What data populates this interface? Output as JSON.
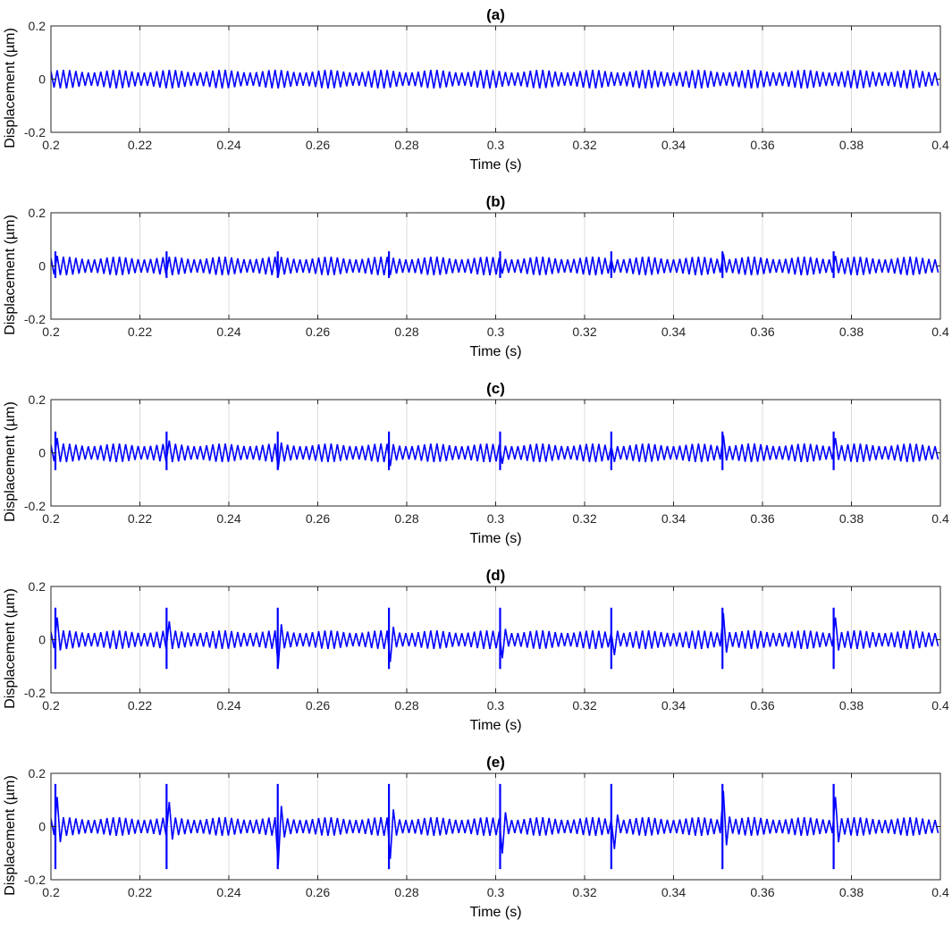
{
  "figure": {
    "line_color": "#0000ff",
    "grid": true
  },
  "chart_data": [
    {
      "type": "line",
      "title": "(a)",
      "xlabel": "Time (s)",
      "ylabel": "Displacement (µm)",
      "xlim": [
        0.2,
        0.4
      ],
      "ylim": [
        -0.2,
        0.2
      ],
      "xticks": [
        0.2,
        0.22,
        0.24,
        0.26,
        0.28,
        0.3,
        0.32,
        0.34,
        0.36,
        0.38,
        0.4
      ],
      "xtick_labels": [
        "0.2",
        "0.22",
        "0.24",
        "0.26",
        "0.28",
        "0.3",
        "0.32",
        "0.34",
        "0.36",
        "0.38",
        "0.4"
      ],
      "yticks": [
        -0.2,
        0,
        0.2
      ],
      "ytick_labels": [
        "-0.2",
        "0",
        "0.2"
      ],
      "series": [
        {
          "color": "#0000ff",
          "base_amplitude": 0.035,
          "oscillation_period_s": 0.0014,
          "spike_times_s": [],
          "spike_peak_up": 0,
          "spike_peak_down": 0
        }
      ]
    },
    {
      "type": "line",
      "title": "(b)",
      "xlabel": "Time (s)",
      "ylabel": "Displacement (µm)",
      "xlim": [
        0.2,
        0.4
      ],
      "ylim": [
        -0.2,
        0.2
      ],
      "xticks": [
        0.2,
        0.22,
        0.24,
        0.26,
        0.28,
        0.3,
        0.32,
        0.34,
        0.36,
        0.38,
        0.4
      ],
      "xtick_labels": [
        "0.2",
        "0.22",
        "0.24",
        "0.26",
        "0.28",
        "0.3",
        "0.32",
        "0.34",
        "0.36",
        "0.38",
        "0.4"
      ],
      "yticks": [
        -0.2,
        0,
        0.2
      ],
      "ytick_labels": [
        "-0.2",
        "0",
        "0.2"
      ],
      "series": [
        {
          "color": "#0000ff",
          "base_amplitude": 0.035,
          "oscillation_period_s": 0.0014,
          "spike_times_s": [
            0.201,
            0.226,
            0.251,
            0.276,
            0.301,
            0.326,
            0.351,
            0.376
          ],
          "spike_peak_up": 0.055,
          "spike_peak_down": -0.045
        }
      ]
    },
    {
      "type": "line",
      "title": "(c)",
      "xlabel": "Time (s)",
      "ylabel": "Displacement (µm)",
      "xlim": [
        0.2,
        0.4
      ],
      "ylim": [
        -0.2,
        0.2
      ],
      "xticks": [
        0.2,
        0.22,
        0.24,
        0.26,
        0.28,
        0.3,
        0.32,
        0.34,
        0.36,
        0.38,
        0.4
      ],
      "xtick_labels": [
        "0.2",
        "0.22",
        "0.24",
        "0.26",
        "0.28",
        "0.3",
        "0.32",
        "0.34",
        "0.36",
        "0.38",
        "0.4"
      ],
      "yticks": [
        -0.2,
        0,
        0.2
      ],
      "ytick_labels": [
        "-0.2",
        "0",
        "0.2"
      ],
      "series": [
        {
          "color": "#0000ff",
          "base_amplitude": 0.035,
          "oscillation_period_s": 0.0014,
          "spike_times_s": [
            0.201,
            0.226,
            0.251,
            0.276,
            0.301,
            0.326,
            0.351,
            0.376
          ],
          "spike_peak_up": 0.08,
          "spike_peak_down": -0.065
        }
      ]
    },
    {
      "type": "line",
      "title": "(d)",
      "xlabel": "Time (s)",
      "ylabel": "Displacement (µm)",
      "xlim": [
        0.2,
        0.4
      ],
      "ylim": [
        -0.2,
        0.2
      ],
      "xticks": [
        0.2,
        0.22,
        0.24,
        0.26,
        0.28,
        0.3,
        0.32,
        0.34,
        0.36,
        0.38,
        0.4
      ],
      "xtick_labels": [
        "0.2",
        "0.22",
        "0.24",
        "0.26",
        "0.28",
        "0.3",
        "0.32",
        "0.34",
        "0.36",
        "0.38",
        "0.4"
      ],
      "yticks": [
        -0.2,
        0,
        0.2
      ],
      "ytick_labels": [
        "-0.2",
        "0",
        "0.2"
      ],
      "series": [
        {
          "color": "#0000ff",
          "base_amplitude": 0.035,
          "oscillation_period_s": 0.0014,
          "spike_times_s": [
            0.201,
            0.226,
            0.251,
            0.276,
            0.301,
            0.326,
            0.351,
            0.376
          ],
          "spike_peak_up": 0.12,
          "spike_peak_down": -0.11
        }
      ]
    },
    {
      "type": "line",
      "title": "(e)",
      "xlabel": "Time (s)",
      "ylabel": "Displacement (µm)",
      "xlim": [
        0.2,
        0.4
      ],
      "ylim": [
        -0.2,
        0.2
      ],
      "xticks": [
        0.2,
        0.22,
        0.24,
        0.26,
        0.28,
        0.3,
        0.32,
        0.34,
        0.36,
        0.38,
        0.4
      ],
      "xtick_labels": [
        "0.2",
        "0.22",
        "0.24",
        "0.26",
        "0.28",
        "0.3",
        "0.32",
        "0.34",
        "0.36",
        "0.38",
        "0.4"
      ],
      "yticks": [
        -0.2,
        0,
        0.2
      ],
      "ytick_labels": [
        "-0.2",
        "0",
        "0.2"
      ],
      "series": [
        {
          "color": "#0000ff",
          "base_amplitude": 0.035,
          "oscillation_period_s": 0.0014,
          "spike_times_s": [
            0.201,
            0.226,
            0.251,
            0.276,
            0.301,
            0.326,
            0.351,
            0.376
          ],
          "spike_peak_up": 0.16,
          "spike_peak_down": -0.16
        }
      ]
    }
  ]
}
